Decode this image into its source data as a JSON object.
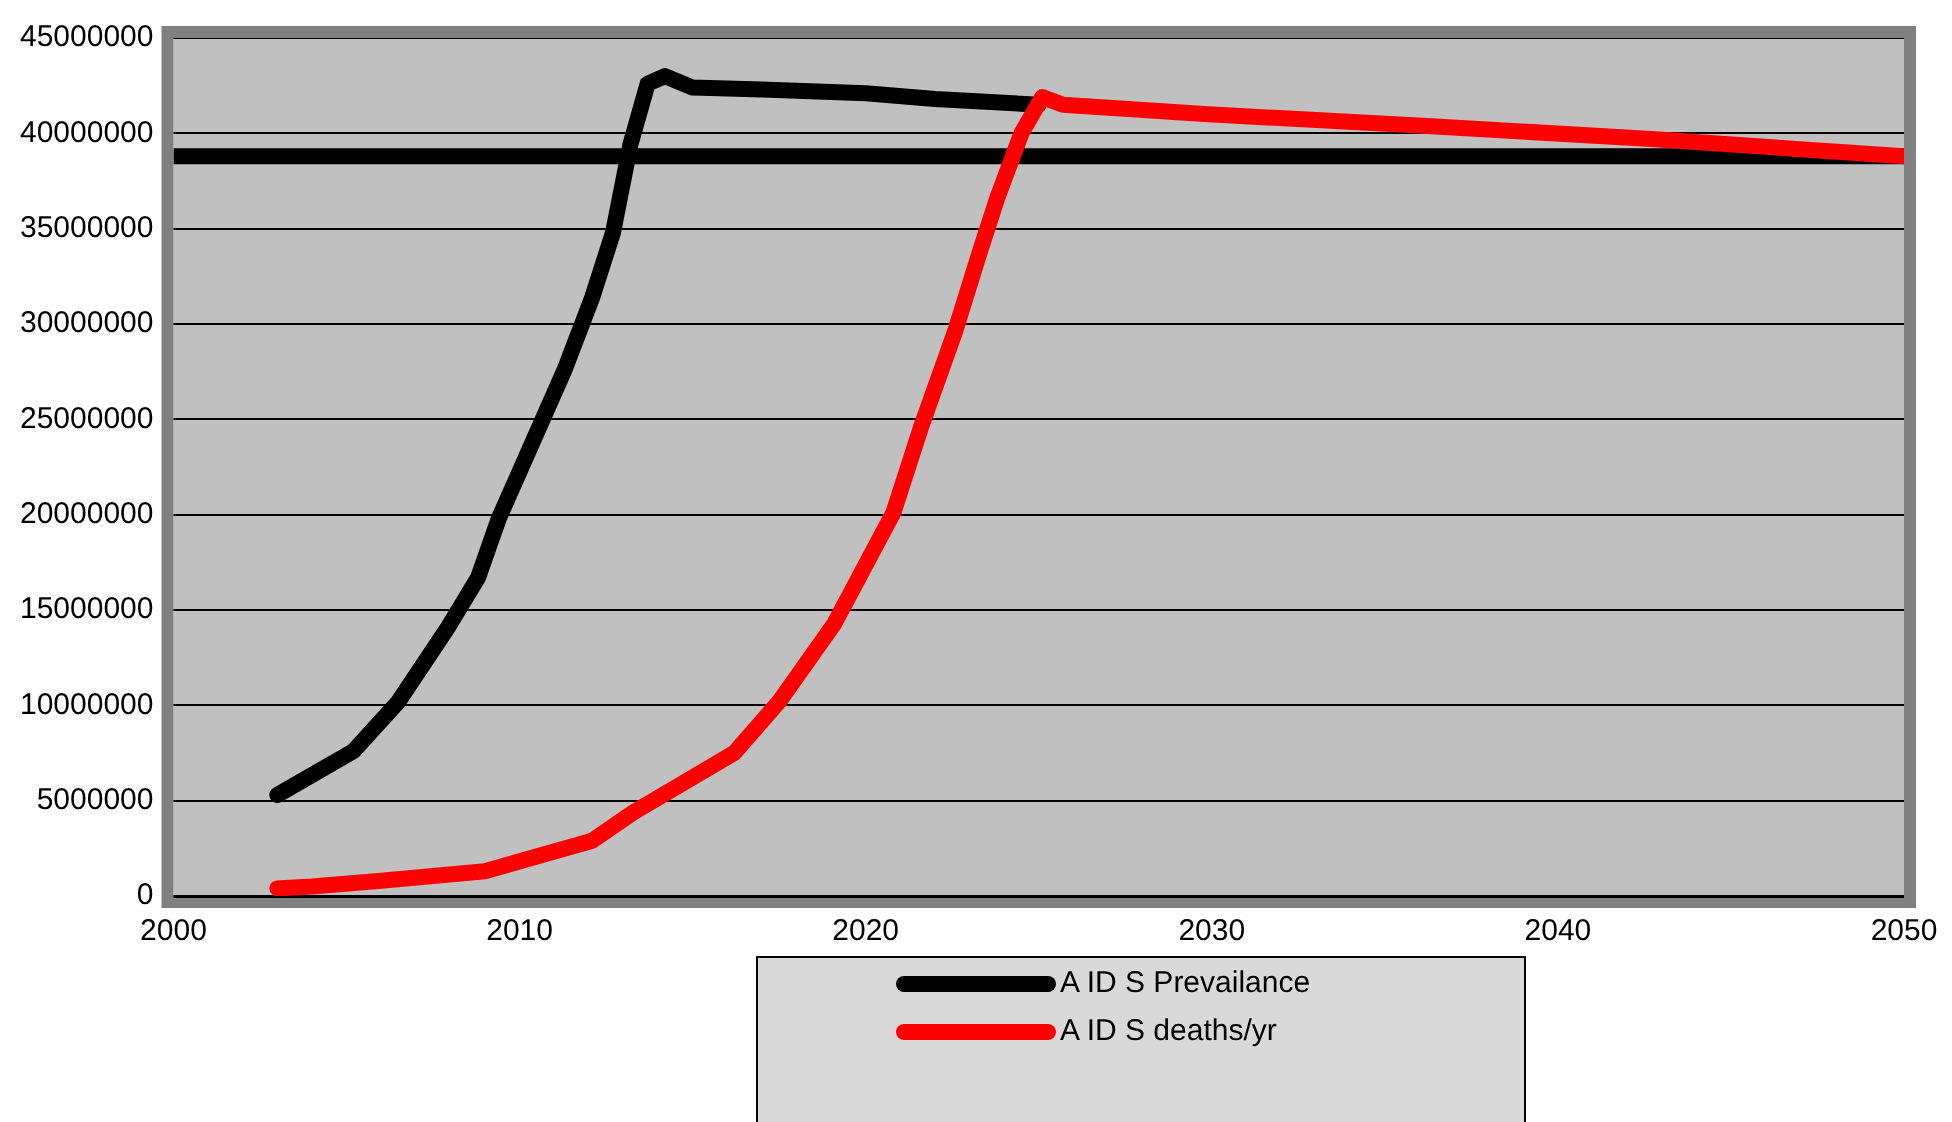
{
  "chart_data": {
    "type": "line",
    "legend": "bottom",
    "grid": "y",
    "marker": "none",
    "line_style": "solid",
    "xlim": [
      2000,
      2050
    ],
    "xticks": [
      2000,
      2010,
      2020,
      2030,
      2040,
      2050
    ],
    "ylim": [
      0,
      45000000
    ],
    "yticks": [
      0,
      5000000,
      10000000,
      15000000,
      20000000,
      25000000,
      30000000,
      35000000,
      40000000,
      45000000
    ],
    "series": [
      {
        "name": "A ID S Prevailance",
        "color": "#000000",
        "x": [
          2003,
          2005.2,
          2006.5,
          2007.9,
          2008.8,
          2009.4,
          2010.4,
          2011.3,
          2012.1,
          2012.7,
          2013.2,
          2013.7,
          2014.2,
          2015,
          2017,
          2020,
          2022,
          2025
        ],
        "values": [
          5300000,
          7600000,
          10200000,
          14000000,
          16700000,
          19800000,
          23900000,
          27600000,
          31400000,
          34800000,
          39400000,
          42600000,
          43000000,
          42400000,
          42300000,
          42100000,
          41800000,
          41500000
        ]
      },
      {
        "name": "A ID S deaths/yr",
        "color": "#ff0000",
        "x": [
          2003,
          2004,
          2006,
          2009,
          2012.1,
          2013.3,
          2016.2,
          2017.5,
          2019.1,
          2020.8,
          2021.6,
          2022.6,
          2023.3,
          2023.8,
          2024.5,
          2025.1,
          2025.7,
          2029.9,
          2036.1,
          2042.7,
          2050
        ],
        "values": [
          400000,
          500000,
          800000,
          1300000,
          2900000,
          4400000,
          7500000,
          10200000,
          14300000,
          20100000,
          24600000,
          29700000,
          33800000,
          36600000,
          40000000,
          41900000,
          41500000,
          41000000,
          40400000,
          39700000,
          38800000
        ]
      }
    ],
    "ref_lines": [
      {
        "axis": "y",
        "value": 38800000,
        "color": "#000000"
      }
    ]
  }
}
